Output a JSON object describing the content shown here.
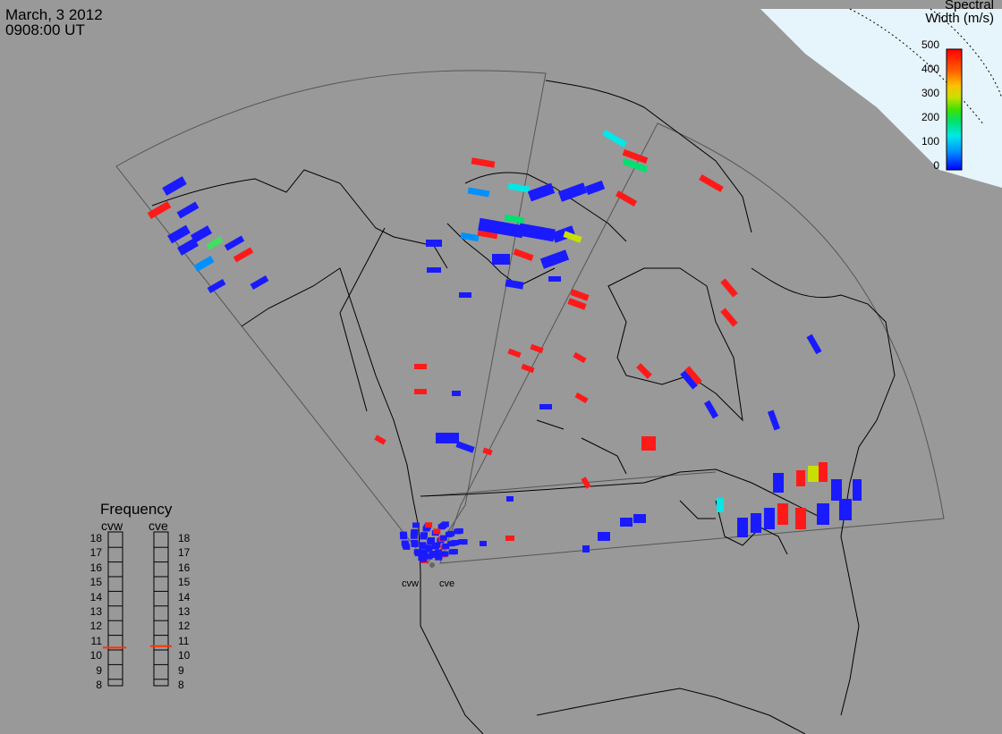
{
  "header": {
    "date": "March, 3 2012",
    "time": "0908:00 UT"
  },
  "colorbar": {
    "title_line1": "Spectral",
    "title_line2": "Width (m/s)",
    "ticks": [
      "500",
      "400",
      "300",
      "200",
      "100",
      "0"
    ],
    "colors": [
      "#0000ff",
      "#0090ff",
      "#00e8e8",
      "#00e070",
      "#40e000",
      "#c8e000",
      "#ffc000",
      "#ff6000",
      "#ff0000"
    ]
  },
  "frequency": {
    "title": "Frequency",
    "col_left_label": "cvw",
    "col_right_label": "cve",
    "ticks": [
      "18",
      "17",
      "16",
      "15",
      "14",
      "13",
      "12",
      "11",
      "10",
      "9",
      "8"
    ],
    "cvw_mhz": 10.6,
    "cve_mhz": 10.7,
    "marker_color": "#ff3300"
  },
  "radars": {
    "site_left": "cvw",
    "site_right": "cve"
  },
  "colors": {
    "background": "#999999",
    "day_region": "#e6f4fb",
    "coast": "#000000",
    "fov": "#555555",
    "low_width": "#1a1aff",
    "high_width": "#ff1a1a"
  }
}
